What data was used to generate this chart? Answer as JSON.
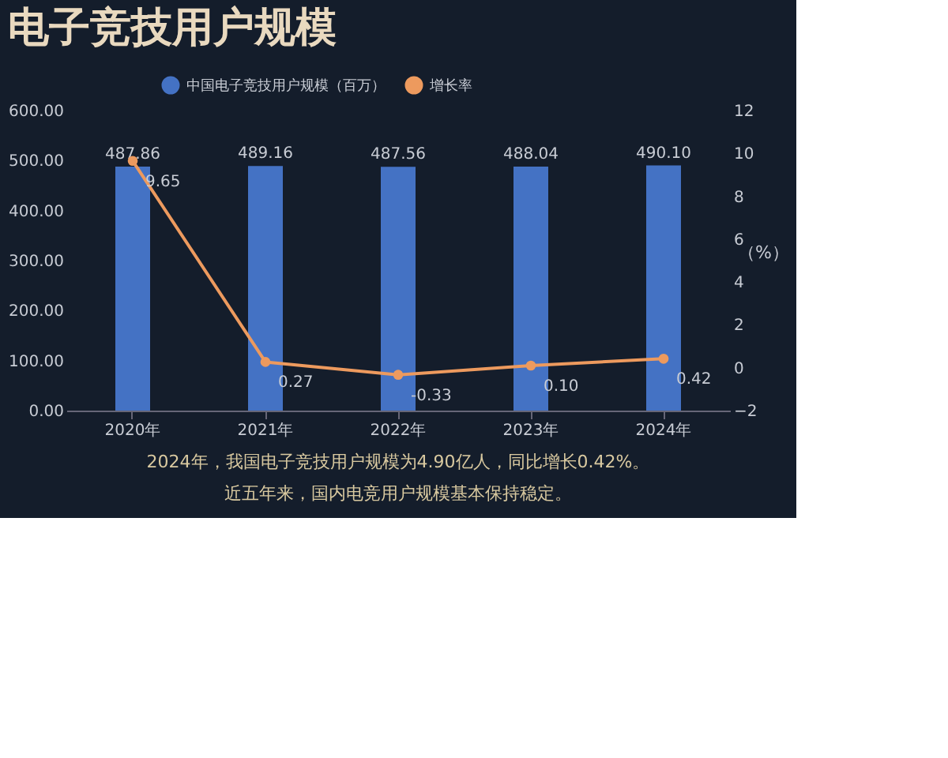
{
  "chart_data": {
    "type": "bar",
    "title": "电子竞技用户规模",
    "categories": [
      "2020年",
      "2021年",
      "2022年",
      "2023年",
      "2024年"
    ],
    "series": [
      {
        "name": "中国电子竞技用户规模（百万）",
        "color": "#4472c4",
        "values": [
          487.86,
          489.16,
          487.56,
          488.04,
          490.1
        ],
        "value_labels": [
          "487.86",
          "489.16",
          "487.56",
          "488.04",
          "490.10"
        ]
      },
      {
        "name": "增长率",
        "type": "line",
        "axis": "y2",
        "color": "#ed9a5e",
        "values": [
          9.65,
          0.27,
          -0.33,
          0.1,
          0.42
        ],
        "value_labels": [
          "9.65",
          "0.27",
          "-0.33",
          "0.10",
          "0.42"
        ]
      }
    ],
    "ylim": [
      0,
      600
    ],
    "yticks": [
      {
        "value": 0,
        "label": "0.00"
      },
      {
        "value": 100,
        "label": "100.00"
      },
      {
        "value": 200,
        "label": "200.00"
      },
      {
        "value": 300,
        "label": "300.00"
      },
      {
        "value": 400,
        "label": "400.00"
      },
      {
        "value": 500,
        "label": "500.00"
      },
      {
        "value": 600,
        "label": "600.00"
      }
    ],
    "y2lim": [
      -2,
      12
    ],
    "y2ticks": [
      -2,
      0,
      2,
      4,
      6,
      8,
      10,
      12
    ],
    "y2label": "（%）",
    "marker": "circle",
    "grid": false,
    "legend": "top",
    "annotations": [
      "2024年，我国电子竞技用户规模为4.90亿人，同比增长0.42%。",
      "近五年来，国内电竞用户规模基本保持稳定。"
    ]
  }
}
